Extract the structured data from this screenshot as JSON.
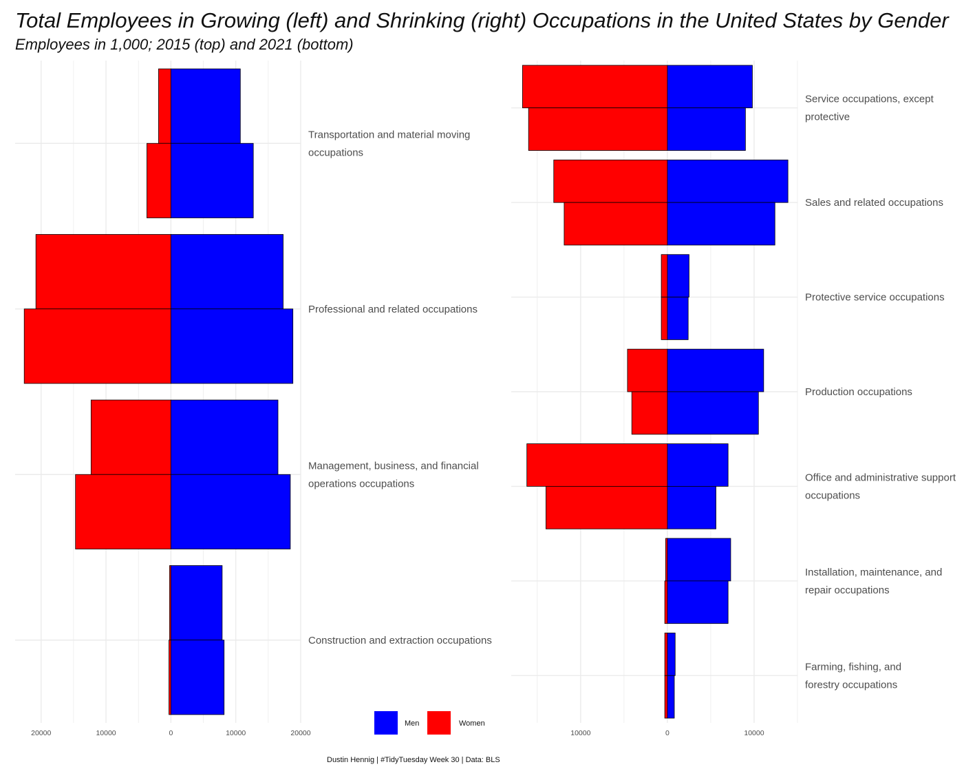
{
  "title": "Total Employees in Growing (left) and Shrinking (right) Occupations in the United States by Gender",
  "subtitle": "Employees in 1,000; 2015 (top) and 2021 (bottom)",
  "caption": "Dustin Hennig | #TidyTuesday Week 30 | Data: BLS",
  "colors": {
    "men": "#0000ff",
    "women": "#ff0000",
    "grid": "#ebebeb",
    "outline": "#000000"
  },
  "legend": [
    {
      "key": "men",
      "label": "Men"
    },
    {
      "key": "women",
      "label": "Women"
    }
  ],
  "chart_data": [
    {
      "type": "bar",
      "orientation": "horizontal-diverging",
      "panel": "left",
      "xlim": [
        -24000,
        20000
      ],
      "x_ticks": [
        -20000,
        -10000,
        0,
        10000,
        20000
      ],
      "x_tick_labels": [
        "20000",
        "10000",
        "0",
        "10000",
        "20000"
      ],
      "categories": [
        {
          "label": [
            "Transportation and material moving",
            "occupations"
          ],
          "years": [
            {
              "year": 2015,
              "men": 10700,
              "women": 1900
            },
            {
              "year": 2021,
              "men": 12700,
              "women": 3700
            }
          ]
        },
        {
          "label": [
            "Professional and related occupations"
          ],
          "years": [
            {
              "year": 2015,
              "men": 17300,
              "women": 20800
            },
            {
              "year": 2021,
              "men": 18800,
              "women": 22600
            }
          ]
        },
        {
          "label": [
            "Management, business, and financial",
            "operations occupations"
          ],
          "years": [
            {
              "year": 2015,
              "men": 16500,
              "women": 12300
            },
            {
              "year": 2021,
              "men": 18400,
              "women": 14700
            }
          ]
        },
        {
          "label": [
            "Construction and extraction occupations"
          ],
          "years": [
            {
              "year": 2015,
              "men": 7900,
              "women": 200
            },
            {
              "year": 2021,
              "men": 8200,
              "women": 300
            }
          ]
        }
      ]
    },
    {
      "type": "bar",
      "orientation": "horizontal-diverging",
      "panel": "right",
      "xlim": [
        -18000,
        15000
      ],
      "x_ticks": [
        -10000,
        0,
        10000
      ],
      "x_tick_labels": [
        "10000",
        "0",
        "10000"
      ],
      "categories": [
        {
          "label": [
            "Service occupations, except",
            "protective"
          ],
          "years": [
            {
              "year": 2015,
              "men": 9800,
              "women": 16700
            },
            {
              "year": 2021,
              "men": 9000,
              "women": 16000
            }
          ]
        },
        {
          "label": [
            "Sales and related occupations"
          ],
          "years": [
            {
              "year": 2015,
              "men": 13900,
              "women": 13100
            },
            {
              "year": 2021,
              "men": 12400,
              "women": 11900
            }
          ]
        },
        {
          "label": [
            "Protective service occupations"
          ],
          "years": [
            {
              "year": 2015,
              "men": 2500,
              "women": 700
            },
            {
              "year": 2021,
              "men": 2400,
              "women": 700
            }
          ]
        },
        {
          "label": [
            "Production occupations"
          ],
          "years": [
            {
              "year": 2015,
              "men": 11100,
              "women": 4600
            },
            {
              "year": 2021,
              "men": 10500,
              "women": 4100
            }
          ]
        },
        {
          "label": [
            "Office and administrative support",
            "occupations"
          ],
          "years": [
            {
              "year": 2015,
              "men": 7000,
              "women": 16200
            },
            {
              "year": 2021,
              "men": 5600,
              "women": 14000
            }
          ]
        },
        {
          "label": [
            "Installation, maintenance, and",
            "repair occupations"
          ],
          "years": [
            {
              "year": 2015,
              "men": 7300,
              "women": 200
            },
            {
              "year": 2021,
              "men": 7000,
              "women": 300
            }
          ]
        },
        {
          "label": [
            "Farming, fishing, and",
            "forestry occupations"
          ],
          "years": [
            {
              "year": 2015,
              "men": 900,
              "women": 300
            },
            {
              "year": 2021,
              "men": 800,
              "women": 300
            }
          ]
        }
      ]
    }
  ]
}
